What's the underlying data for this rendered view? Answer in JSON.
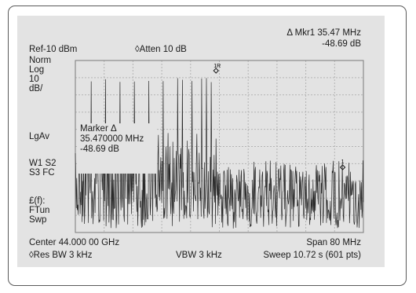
{
  "header": {
    "marker_readout": "Δ  Mkr1 35.47 MHz",
    "marker_amplitude": "-48.69 dB",
    "ref_level": "Ref-10 dBm",
    "attenuation": "◊Atten 10 dB"
  },
  "side_labels": {
    "group1": [
      "Norm",
      "Log",
      "10",
      "dB/"
    ],
    "avg": "LgAv",
    "group2": [
      "W1 S2",
      "S3 FC"
    ],
    "group3": [
      "£(f):",
      "FTun",
      "Swp"
    ]
  },
  "marker_box": {
    "title": "Marker Δ",
    "frequency": "35.470000 MHz",
    "amplitude": "-48.69 dB"
  },
  "markers": {
    "ref_label": "1R",
    "delta_label": "1"
  },
  "footer": {
    "center": "Center 44.000 00 GHz",
    "span": "Span 80 MHz",
    "res_bw": "◊Res BW 3 kHz",
    "vbw": "VBW 3 kHz",
    "sweep": "Sweep  10.72 s (601 pts)"
  },
  "chart_data": {
    "type": "line",
    "x_center_ghz": 44.0,
    "span_mhz": 80,
    "y_ref_dbm": -10,
    "y_scale_db_per_div": 10,
    "points": 601,
    "marker_delta_frequency_mhz": 35.47,
    "marker_delta_amplitude_db": -48.69
  },
  "colors": {
    "screen_bg": "#e3e3e3",
    "trace": "#2a2a2a",
    "frame": "#5a5a5a"
  }
}
